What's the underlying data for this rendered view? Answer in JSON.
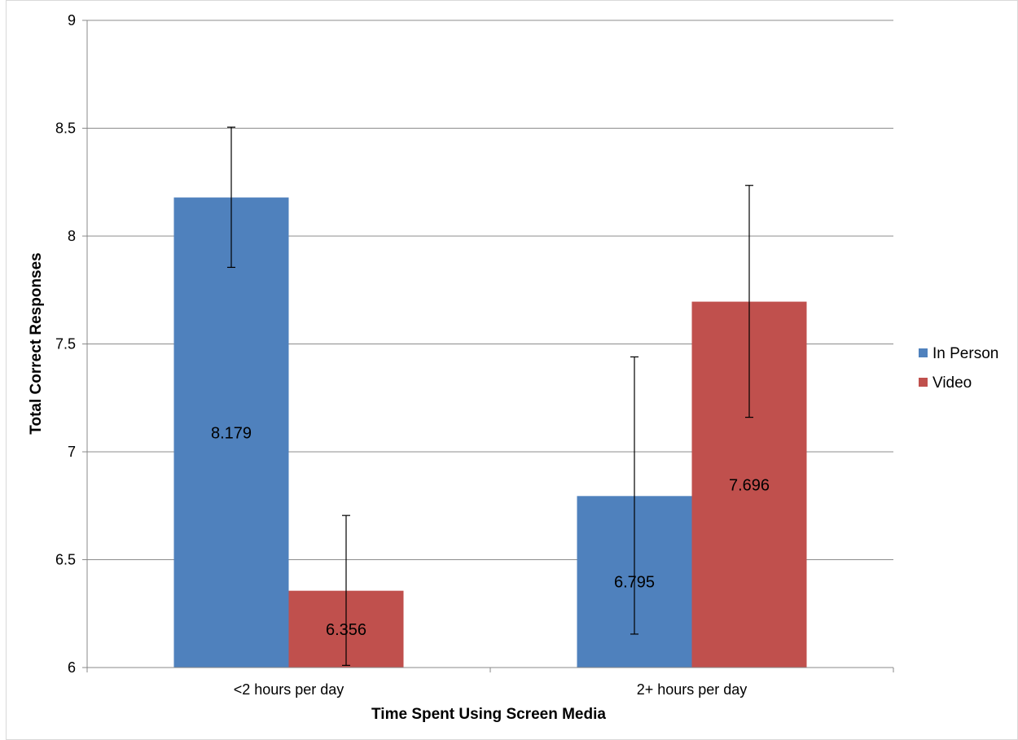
{
  "chart_data": {
    "type": "bar",
    "categories": [
      "<2 hours per day",
      "2+ hours per day"
    ],
    "series": [
      {
        "name": "In Person",
        "color": "#4F81BD",
        "values": [
          8.179,
          6.795
        ],
        "error_low": [
          7.855,
          6.155
        ],
        "error_high": [
          8.505,
          7.44
        ],
        "labels": [
          "8.179",
          "6.795"
        ]
      },
      {
        "name": "Video",
        "color": "#C0504D",
        "values": [
          6.356,
          7.696
        ],
        "error_low": [
          6.01,
          7.16
        ],
        "error_high": [
          6.705,
          8.235
        ],
        "labels": [
          "6.356",
          "7.696"
        ]
      }
    ],
    "xlabel": "Time Spent Using Screen Media",
    "ylabel": "Total Correct Responses",
    "ylim": [
      6,
      9
    ],
    "yticks": [
      "6",
      "6.5",
      "7",
      "7.5",
      "8",
      "8.5",
      "9"
    ],
    "grid": true,
    "legend_position": "right"
  }
}
